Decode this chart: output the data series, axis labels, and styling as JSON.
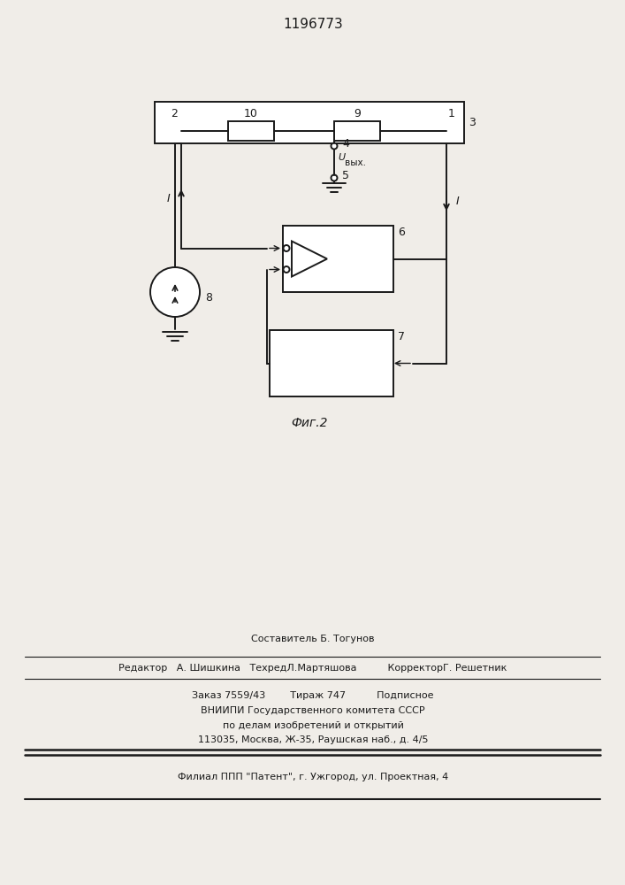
{
  "patent_number": "1196773",
  "bg": "#f0ede8",
  "lc": "#1a1a1a",
  "footer": {
    "line1": "Составитель Б. Тогунов",
    "line2": "Редактор   А. Шишкина   ТехредЛ.Мартяшова          КорректорГ. Решетник",
    "line3": "Заказ 7559/43        Тираж 747          Подписное",
    "line4": "ВНИИПИ Государственного комитета СССР",
    "line5": "по делам изобретений и открытий",
    "line6": "113035, Москва, Ж-35, Раушская наб., д. 4/5",
    "line7": "Филиал ППП \"Патент\", г. Ужгород, ул. Проектная, 4"
  }
}
